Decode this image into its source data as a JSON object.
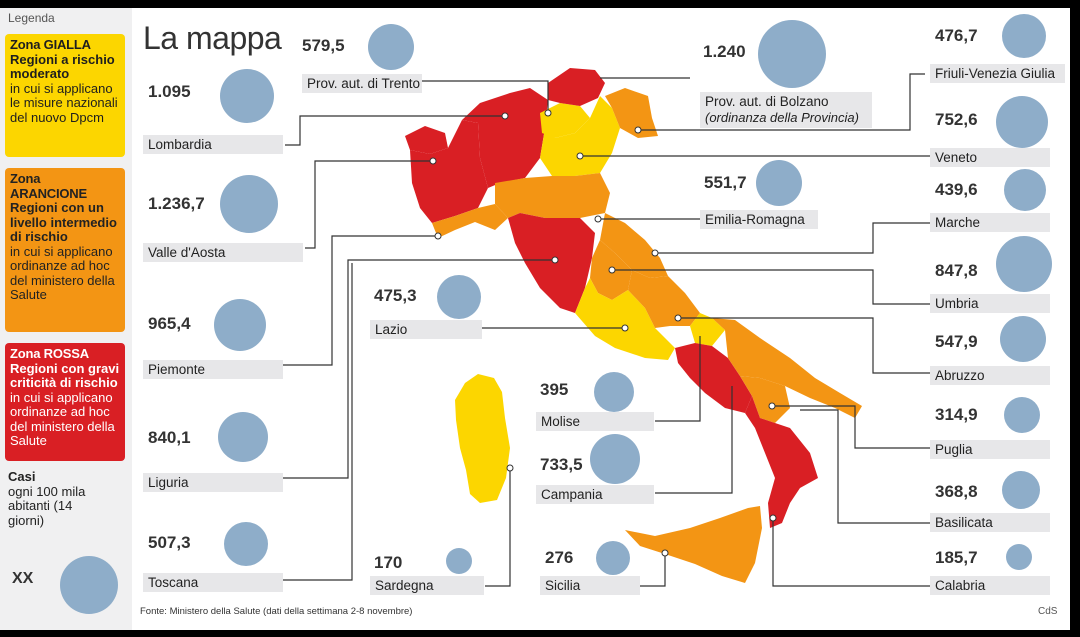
{
  "legend": {
    "title": "Legenda",
    "gialla": {
      "name": "Zona GIALLA",
      "headline": "Regioni a rischio moderato",
      "desc": "in cui si applicano le misure nazionali del nuovo Dpcm",
      "color": "#fcd600"
    },
    "arancione": {
      "name": "Zona ARANCIONE",
      "headline": "Regioni con un livello intermedio di rischio",
      "desc": "in cui si applicano ordinanze ad hoc del ministero della Salute",
      "color": "#f39514"
    },
    "rossa": {
      "name": "Zona ROSSA",
      "headline": "Regioni con gravi criticità di rischio",
      "desc": "in cui si applicano ordinanze ad hoc del ministero della Salute",
      "color": "#d91f24"
    },
    "casi_title": "Casi",
    "casi_desc": "ogni 100 mila abitanti (14 giorni)",
    "key_label": "XX",
    "bubble_color": "#8eadc9"
  },
  "title": "La mappa",
  "regions": [
    {
      "key": "lombardia",
      "name": "Lombardia",
      "value": "1.095",
      "cases": 1095,
      "zone": "rossa"
    },
    {
      "key": "valle",
      "name": "Valle d'Aosta",
      "value": "1.236,7",
      "cases": 1236.7,
      "zone": "rossa"
    },
    {
      "key": "piemonte",
      "name": "Piemonte",
      "value": "965,4",
      "cases": 965.4,
      "zone": "rossa"
    },
    {
      "key": "liguria",
      "name": "Liguria",
      "value": "840,1",
      "cases": 840.1,
      "zone": "arancione"
    },
    {
      "key": "toscana",
      "name": "Toscana",
      "value": "507,3",
      "cases": 507.3,
      "zone": "rossa"
    },
    {
      "key": "trento",
      "name": "Prov. aut. di Trento",
      "value": "579,5",
      "cases": 579.5,
      "zone": "gialla"
    },
    {
      "key": "bolzano",
      "name": "Prov. aut. di Bolzano",
      "note": "(ordinanza della Provincia)",
      "value": "1.240",
      "cases": 1240,
      "zone": "rossa"
    },
    {
      "key": "emilia",
      "name": "Emilia-Romagna",
      "value": "551,7",
      "cases": 551.7,
      "zone": "arancione"
    },
    {
      "key": "lazio",
      "name": "Lazio",
      "value": "475,3",
      "cases": 475.3,
      "zone": "gialla"
    },
    {
      "key": "molise",
      "name": "Molise",
      "value": "395",
      "cases": 395,
      "zone": "gialla"
    },
    {
      "key": "campania",
      "name": "Campania",
      "value": "733,5",
      "cases": 733.5,
      "zone": "rossa"
    },
    {
      "key": "sardegna",
      "name": "Sardegna",
      "value": "170",
      "cases": 170,
      "zone": "gialla"
    },
    {
      "key": "sicilia",
      "name": "Sicilia",
      "value": "276",
      "cases": 276,
      "zone": "arancione"
    },
    {
      "key": "friuli",
      "name": "Friuli-Venezia Giulia",
      "value": "476,7",
      "cases": 476.7,
      "zone": "arancione"
    },
    {
      "key": "veneto",
      "name": "Veneto",
      "value": "752,6",
      "cases": 752.6,
      "zone": "gialla"
    },
    {
      "key": "marche",
      "name": "Marche",
      "value": "439,6",
      "cases": 439.6,
      "zone": "arancione"
    },
    {
      "key": "umbria",
      "name": "Umbria",
      "value": "847,8",
      "cases": 847.8,
      "zone": "arancione"
    },
    {
      "key": "abruzzo",
      "name": "Abruzzo",
      "value": "547,9",
      "cases": 547.9,
      "zone": "arancione"
    },
    {
      "key": "puglia",
      "name": "Puglia",
      "value": "314,9",
      "cases": 314.9,
      "zone": "arancione"
    },
    {
      "key": "basilicata",
      "name": "Basilicata",
      "value": "368,8",
      "cases": 368.8,
      "zone": "arancione"
    },
    {
      "key": "calabria",
      "name": "Calabria",
      "value": "185,7",
      "cases": 185.7,
      "zone": "rossa"
    }
  ],
  "source": "Fonte: Ministero della Salute (dati della settimana 2-8 novembre)",
  "credit": "CdS"
}
